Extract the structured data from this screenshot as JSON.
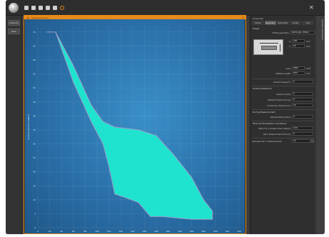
{
  "app": {
    "accent": "#e68a1a",
    "plot_fill": "#1fe3cf",
    "plot_bg": "#2a6fa8"
  },
  "toolbar": {
    "icons": [
      "logo-icon",
      "new-icon",
      "open-icon",
      "save-icon",
      "export-icon",
      "print-icon",
      "settings-icon"
    ]
  },
  "left_rail": {
    "btn1": "Defaults",
    "btn2": "New"
  },
  "plot_window": {
    "title": "3D - Spectral Survey",
    "close": "×"
  },
  "right_panel": {
    "title": "Properties",
    "tabs": [
      "Setup",
      "Geometry",
      "Calibration",
      "Graph",
      "Info"
    ],
    "active_tab": 1,
    "section_shape": "Shape",
    "profile_label": "Profile geometry",
    "profile_value": "Rectangle (Plate)",
    "w_label": "a",
    "w_value": "100",
    "w_unit": "mm",
    "h_label": "b",
    "h_value": "50",
    "h_unit": "mm",
    "area_label": "Area",
    "area_value": "5000",
    "area_unit": "mm²",
    "len_label": "Wetted Length",
    "len_value": "80.0",
    "len_unit": "mm",
    "contact_label": "Contact Angle [º]",
    "contact_value": "0",
    "section_surface": "Surface Detection",
    "speed_label": "Speed [mm/s]",
    "speed_value": "3",
    "weight_label": "Weight Threshold [mg]",
    "weight_value": "8",
    "depth_label": "Immersion Depth [mm]",
    "depth_value": "10",
    "section_measure": "During Measurement",
    "sample_label": "Sample Rate [1/sec]",
    "sample_value": "0",
    "section_stop": "Stop and Evaluation Conditions",
    "stop_label": "Stop if ≤ n smaller than [mN/m]",
    "stop_value": "0.01",
    "max_label": "Max measurement time [s]",
    "max_value": "0",
    "avg_label": "Average last n measurements",
    "avg_value": "10"
  },
  "side_tab": {
    "label": "Sample Information"
  },
  "chart_data": {
    "type": "area",
    "title": "",
    "xlabel": "",
    "ylabel": "Surface tension [mN/m]",
    "x_ticks": [
      "0",
      "20",
      "40",
      "60",
      "80",
      "100",
      "120",
      "140",
      "160",
      "180",
      "200",
      "220",
      "240",
      "260",
      "280",
      "300",
      "320",
      "340"
    ],
    "y_ticks": [
      "70",
      "65",
      "60",
      "55",
      "50",
      "45",
      "40",
      "35",
      "30",
      "25",
      "20",
      "15",
      "10",
      "5",
      "0"
    ],
    "xlim": [
      0,
      340
    ],
    "ylim": [
      0,
      72
    ],
    "series": [
      {
        "upper": [
          [
            15,
            70
          ],
          [
            30,
            70
          ],
          [
            60,
            58
          ],
          [
            90,
            44
          ],
          [
            110,
            38
          ],
          [
            130,
            36
          ],
          [
            170,
            35
          ],
          [
            200,
            33
          ],
          [
            230,
            26
          ],
          [
            260,
            18
          ],
          [
            280,
            10
          ],
          [
            295,
            6
          ]
        ],
        "lower": [
          [
            15,
            70
          ],
          [
            30,
            70
          ],
          [
            60,
            52
          ],
          [
            90,
            38
          ],
          [
            110,
            30
          ],
          [
            120,
            22
          ],
          [
            130,
            12
          ],
          [
            145,
            11
          ],
          [
            170,
            9
          ],
          [
            190,
            4
          ],
          [
            210,
            4
          ],
          [
            260,
            3
          ],
          [
            295,
            3
          ]
        ]
      }
    ]
  }
}
